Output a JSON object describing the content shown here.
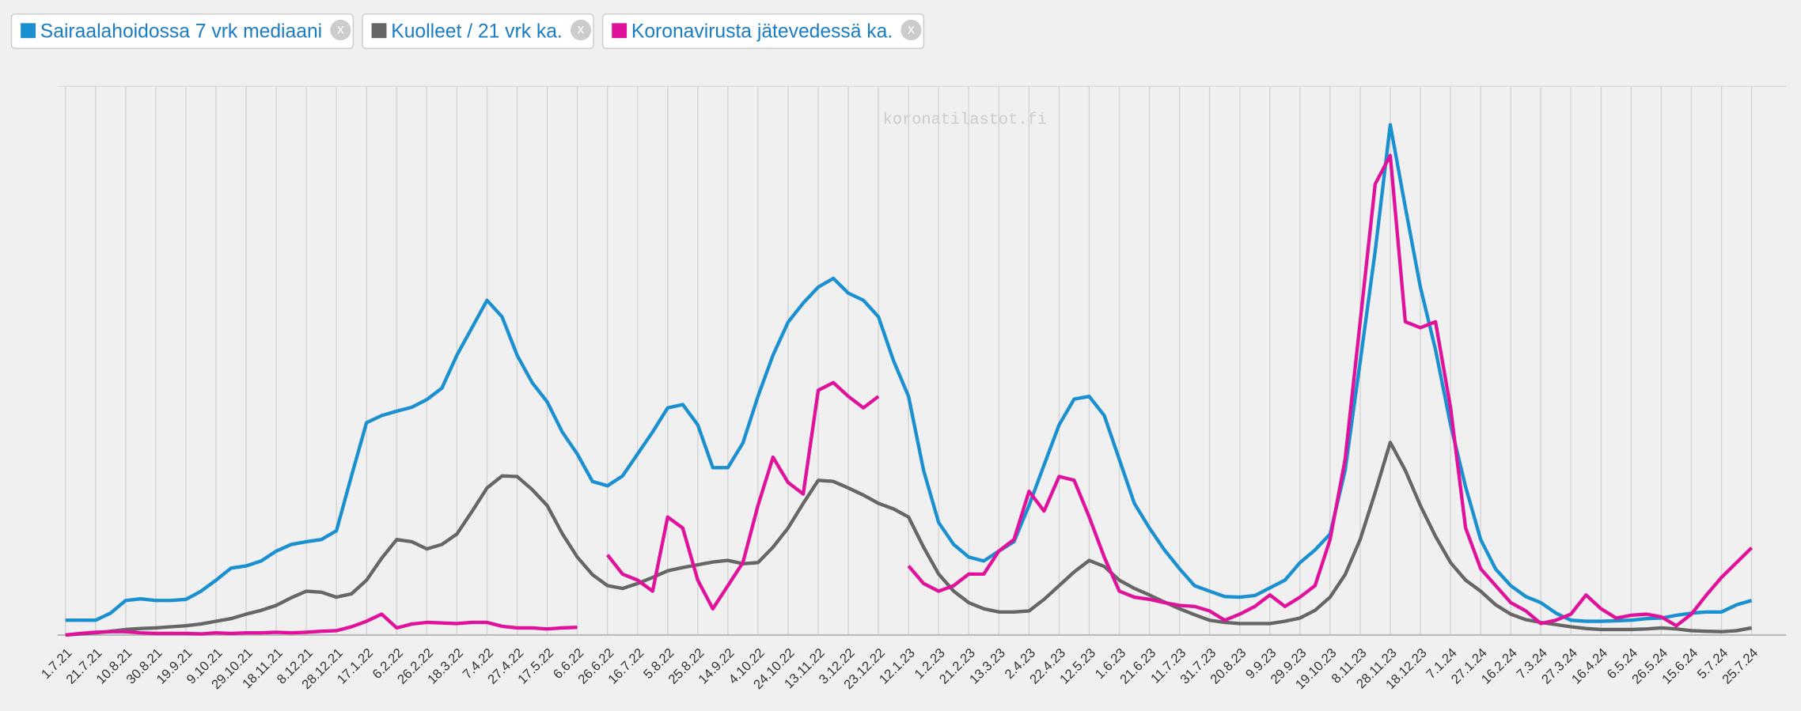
{
  "chart_data": {
    "type": "line",
    "watermark": "koronatilastot.fi",
    "close_label": "x",
    "categories": [
      "1.7.21",
      null,
      "21.7.21",
      null,
      "10.8.21",
      null,
      "30.8.21",
      null,
      "19.9.21",
      null,
      "9.10.21",
      null,
      "29.10.21",
      null,
      "18.11.21",
      null,
      "8.12.21",
      null,
      "28.12.21",
      null,
      "17.1.22",
      null,
      "6.2.22",
      null,
      "26.2.22",
      null,
      "18.3.22",
      null,
      "7.4.22",
      null,
      "27.4.22",
      null,
      "17.5.22",
      null,
      "6.6.22",
      null,
      "26.6.22",
      null,
      "16.7.22",
      null,
      "5.8.22",
      null,
      "25.8.22",
      null,
      "14.9.22",
      null,
      "4.10.22",
      null,
      "24.10.22",
      null,
      "13.11.22",
      null,
      "3.12.22",
      null,
      "23.12.22",
      null,
      "12.1.23",
      null,
      "1.2.23",
      null,
      "21.2.23",
      null,
      "13.3.23",
      null,
      "2.4.23",
      null,
      "22.4.23",
      null,
      "12.5.23",
      null,
      "1.6.23",
      null,
      "21.6.23",
      null,
      "11.7.23",
      null,
      "31.7.23",
      null,
      "20.8.23",
      null,
      "9.9.23",
      null,
      "29.9.23",
      null,
      "19.10.23",
      null,
      "8.11.23",
      null,
      "28.11.23",
      null,
      "18.12.23",
      null,
      "7.1.24",
      null,
      "27.1.24",
      null,
      "16.2.24",
      null,
      "7.3.24",
      null,
      "27.3.24",
      null,
      "16.4.24",
      null,
      "6.5.24",
      null,
      "26.5.24",
      null,
      "15.6.24",
      null,
      "5.7.24",
      null,
      "25.7.24"
    ],
    "ylim": [
      0,
      100
    ],
    "grid": true,
    "series": [
      {
        "name": "Sairaalahoidossa 7 vrk mediaani",
        "color": "#1a90d0",
        "values": [
          2.7,
          2.7,
          2.7,
          4,
          6.3,
          6.6,
          6.3,
          6.3,
          6.5,
          8,
          10,
          12.2,
          12.6,
          13.5,
          15.3,
          16.5,
          17,
          17.4,
          19,
          29,
          38.7,
          40,
          40.8,
          41.5,
          42.9,
          45,
          51,
          56,
          61,
          58,
          51,
          46,
          42.5,
          37,
          33,
          28,
          27.2,
          29,
          33,
          37,
          41.4,
          42,
          38.3,
          30.5,
          30.5,
          35,
          43.5,
          51,
          57,
          60.5,
          63.4,
          65,
          62.3,
          61,
          58,
          50,
          43.5,
          30,
          20.5,
          16.5,
          14.2,
          13.5,
          15.3,
          17,
          23.6,
          31,
          38.3,
          43,
          43.5,
          40,
          32,
          24,
          19.5,
          15.5,
          12.1,
          9,
          8,
          7,
          6.9,
          7.2,
          8.6,
          10,
          13.2,
          15.5,
          18.4,
          30,
          49.8,
          70,
          93,
          78,
          63.4,
          52,
          38.3,
          27,
          17.4,
          12,
          9,
          7,
          5.9,
          4,
          2.7,
          2.5,
          2.5,
          2.6,
          2.7,
          3,
          3.1,
          3.6,
          4,
          4.2,
          4.2,
          5.5,
          6.3
        ]
      },
      {
        "name": "Kuolleet / 21 vrk ka.",
        "color": "#666666",
        "values": [
          0,
          0.2,
          0.4,
          0.7,
          1,
          1.2,
          1.3,
          1.5,
          1.7,
          2,
          2.5,
          3,
          3.8,
          4.5,
          5.4,
          6.8,
          8,
          7.8,
          6.9,
          7.5,
          10,
          14,
          17.4,
          17,
          15.7,
          16.5,
          18.4,
          22.5,
          26.8,
          29,
          28.9,
          26.5,
          23.6,
          18.5,
          14.2,
          11,
          9,
          8.5,
          9.4,
          10.5,
          11.7,
          12.3,
          12.8,
          13.3,
          13.6,
          13,
          13.2,
          16,
          19.5,
          24,
          28.2,
          28,
          26.8,
          25.5,
          24,
          23,
          21.5,
          16,
          11.1,
          8,
          5.9,
          4.8,
          4.2,
          4.2,
          4.4,
          6.5,
          9,
          11.5,
          13.6,
          12.5,
          10,
          8.5,
          7.3,
          6,
          4.8,
          3.7,
          2.7,
          2.3,
          2.1,
          2.1,
          2.1,
          2.5,
          3.1,
          4.5,
          6.9,
          11,
          17.4,
          26,
          35.1,
          30,
          23.6,
          18,
          13.2,
          10,
          8,
          5.5,
          3.8,
          2.8,
          2.3,
          1.9,
          1.5,
          1.2,
          1,
          1,
          1,
          1.1,
          1.3,
          1.1,
          0.8,
          0.7,
          0.6,
          0.8,
          1.3
        ]
      },
      {
        "name": "Koronavirusta jätevedessä ka.",
        "color": "#e0129c",
        "values": [
          0,
          0.3,
          0.5,
          0.6,
          0.6,
          0.4,
          0.3,
          0.3,
          0.3,
          0.2,
          0.4,
          0.3,
          0.4,
          0.4,
          0.5,
          0.4,
          0.5,
          0.7,
          0.8,
          1.5,
          2.5,
          3.8,
          1.3,
          2,
          2.3,
          2.2,
          2.1,
          2.3,
          2.3,
          1.6,
          1.3,
          1.3,
          1.1,
          1.3,
          1.4,
          null,
          14.6,
          11.1,
          10,
          8,
          21.5,
          19.5,
          10,
          4.8,
          9,
          13.2,
          23.6,
          32.4,
          27.8,
          25.7,
          44.6,
          46,
          43.5,
          41.4,
          43.5,
          null,
          12.6,
          9.4,
          8,
          9,
          11.1,
          11.1,
          15.3,
          17.4,
          26.2,
          22.6,
          28.9,
          28.2,
          21.5,
          14.2,
          8,
          6.9,
          6.5,
          5.9,
          5.4,
          5.2,
          4.4,
          2.7,
          3.8,
          5.2,
          7.3,
          5.2,
          6.9,
          9,
          17.4,
          32,
          57.1,
          82.2,
          87.4,
          57.1,
          56,
          57.1,
          41.4,
          19.5,
          12.1,
          9,
          5.9,
          4.4,
          2.1,
          2.7,
          3.8,
          7.3,
          4.8,
          3.1,
          3.6,
          3.8,
          3.3,
          1.7,
          3.8,
          7.3,
          10.5,
          13.2,
          15.9
        ]
      }
    ]
  }
}
